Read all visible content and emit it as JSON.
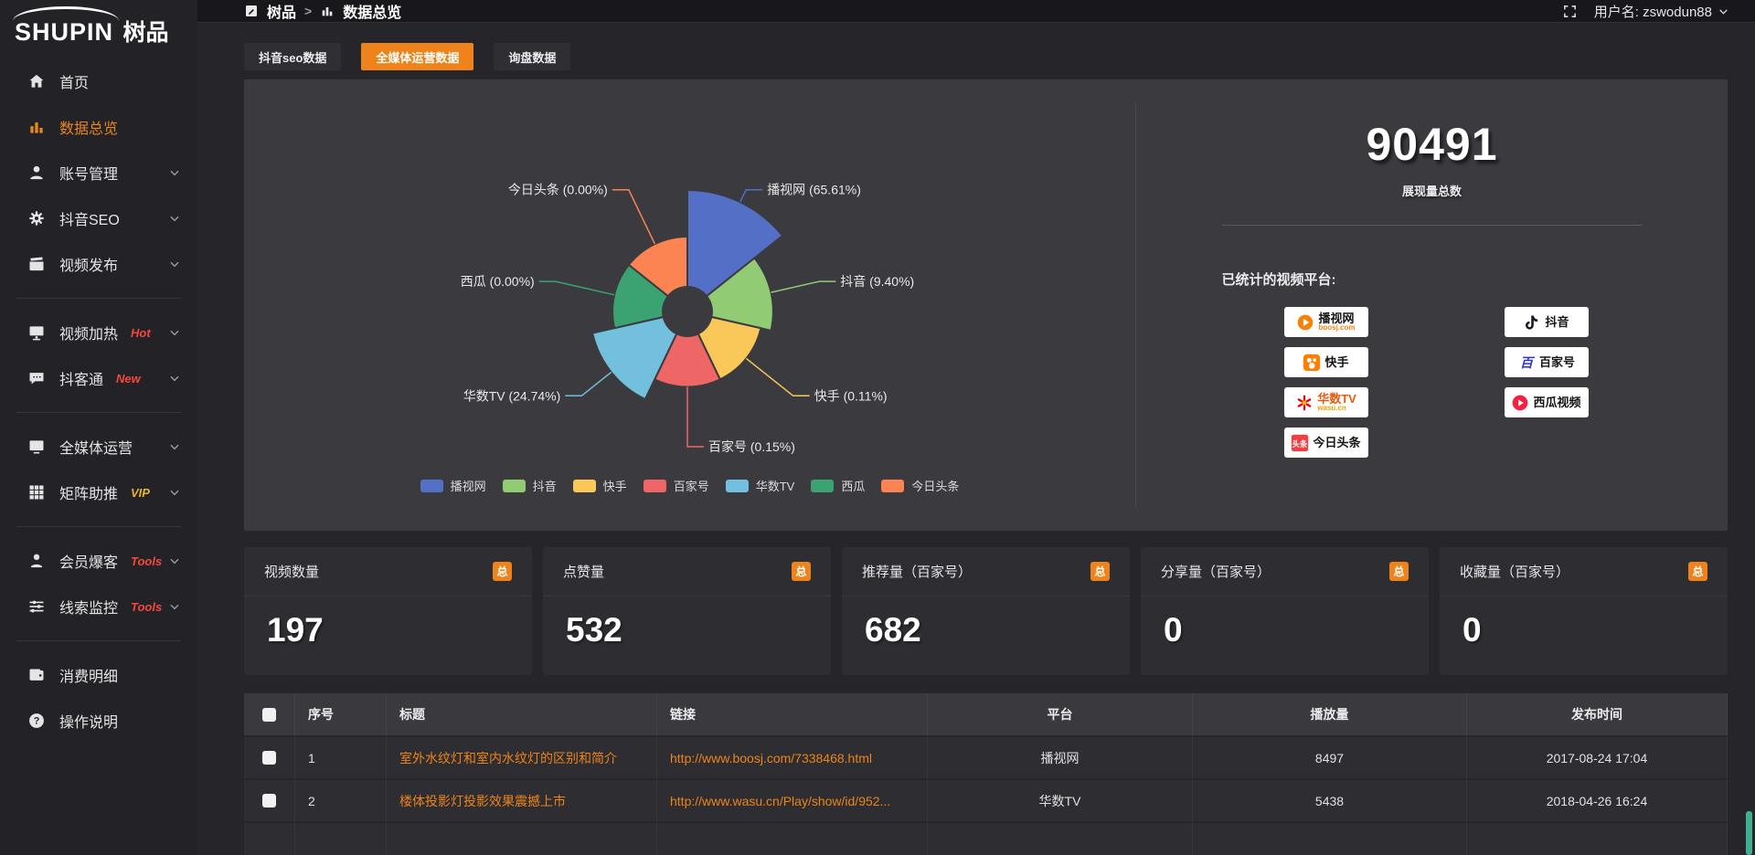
{
  "colors": {
    "accent": "#ed831a",
    "panel": "#3b3b3f",
    "hot_badge": "#f5483b",
    "vip_badge": "#e7b52c",
    "scrollbar": "#3fae92"
  },
  "brand": {
    "logo_en": "SHUPIN",
    "logo_cn": "树品"
  },
  "topbar": {
    "breadcrumb_root": "树品",
    "breadcrumb_sep": ">",
    "breadcrumb_current": "数据总览",
    "username": "用户名: zswodun88"
  },
  "sidebar": {
    "items": [
      {
        "key": "home",
        "label": "首页",
        "icon": "home"
      },
      {
        "key": "data-overview",
        "label": "数据总览",
        "icon": "chart",
        "active": true
      },
      {
        "key": "account-management",
        "label": "账号管理",
        "icon": "user",
        "expandable": true
      },
      {
        "key": "douyin-seo",
        "label": "抖音SEO",
        "icon": "gear",
        "expandable": true
      },
      {
        "key": "video-publish",
        "label": "视频发布",
        "icon": "publish",
        "expandable": true
      },
      {
        "divider": true
      },
      {
        "key": "video-heat",
        "label": "视频加热",
        "icon": "heat",
        "badge": "Hot",
        "badge_color": "#f5483b",
        "expandable": true
      },
      {
        "key": "douketong",
        "label": "抖客通",
        "icon": "chat",
        "badge": "New",
        "badge_color": "#f5483b",
        "expandable": true
      },
      {
        "divider": true
      },
      {
        "key": "media-operation",
        "label": "全媒体运营",
        "icon": "media",
        "expandable": true
      },
      {
        "key": "matrix-boost",
        "label": "矩阵助推",
        "icon": "grid",
        "badge": "VIP",
        "badge_color": "#e7b52c",
        "expandable": true
      },
      {
        "divider": true
      },
      {
        "key": "member-baoke",
        "label": "会员爆客",
        "icon": "member",
        "badge": "Tools",
        "badge_color": "#f5483b",
        "expandable": true
      },
      {
        "key": "clue-monitor",
        "label": "线索监控",
        "icon": "sliders",
        "badge": "Tools",
        "badge_color": "#f5483b",
        "expandable": true
      },
      {
        "divider": true
      },
      {
        "key": "consumption-detail",
        "label": "消费明细",
        "icon": "wallet"
      },
      {
        "key": "operation-guide",
        "label": "操作说明",
        "icon": "question"
      }
    ]
  },
  "tabs": [
    {
      "key": "douyin-seo-data",
      "label": "抖音seo数据",
      "active": false
    },
    {
      "key": "media-operation-data",
      "label": "全媒体运营数据",
      "active": true
    },
    {
      "key": "inquiry-data",
      "label": "询盘数据",
      "active": false
    }
  ],
  "chart_data": {
    "type": "pie",
    "subtype": "nightingale-rose",
    "categories": [
      "播视网",
      "抖音",
      "快手",
      "百家号",
      "华数TV",
      "西瓜",
      "今日头条"
    ],
    "values": [
      65.61,
      9.4,
      0.11,
      0.15,
      24.74,
      0.0,
      0.0
    ],
    "value_format": "percent",
    "label_format": "{name} ({value}%)",
    "colors": [
      "#5470c6",
      "#91cc75",
      "#fac858",
      "#ee6666",
      "#73c0de",
      "#3ba272",
      "#fc8452"
    ],
    "legend_position": "bottom"
  },
  "overview": {
    "total": "90491",
    "total_label": "展现量总数",
    "platforms_label": "已统计的视频平台:",
    "platforms": [
      {
        "key": "boosj",
        "name": "播视网",
        "sub": "boosj.com",
        "sub_color": "#f5820b",
        "column": "left"
      },
      {
        "key": "kuaishou",
        "name": "快手",
        "column": "left"
      },
      {
        "key": "wasu",
        "name": "华数TV",
        "name_color": "#e8590c",
        "sub": "wasu.cn",
        "sub_color": "#f0a000",
        "column": "left"
      },
      {
        "key": "toutiao",
        "name": "今日头条",
        "column": "left"
      },
      {
        "key": "douyin",
        "name": "抖音",
        "column": "right"
      },
      {
        "key": "baijia",
        "name": "百家号",
        "column": "right"
      },
      {
        "key": "xigua",
        "name": "西瓜视频",
        "column": "right"
      }
    ]
  },
  "stats_cards": [
    {
      "label": "视频数量",
      "badge": "总",
      "value": "197"
    },
    {
      "label": "点赞量",
      "badge": "总",
      "value": "532"
    },
    {
      "label": "推荐量（百家号）",
      "badge": "总",
      "value": "682"
    },
    {
      "label": "分享量（百家号）",
      "badge": "总",
      "value": "0"
    },
    {
      "label": "收藏量（百家号）",
      "badge": "总",
      "value": "0"
    }
  ],
  "table": {
    "headers": [
      "序号",
      "标题",
      "链接",
      "平台",
      "播放量",
      "发布时间"
    ],
    "rows": [
      {
        "index": "1",
        "title": "室外水纹灯和室内水纹灯的区别和简介",
        "link": "http://www.boosj.com/7338468.html",
        "platform": "播视网",
        "plays": "8497",
        "time": "2017-08-24 17:04"
      },
      {
        "index": "2",
        "title": "楼体投影灯投影效果震撼上市",
        "link": "http://www.wasu.cn/Play/show/id/952...",
        "platform": "华数TV",
        "plays": "5438",
        "time": "2018-04-26 16:24"
      }
    ]
  }
}
